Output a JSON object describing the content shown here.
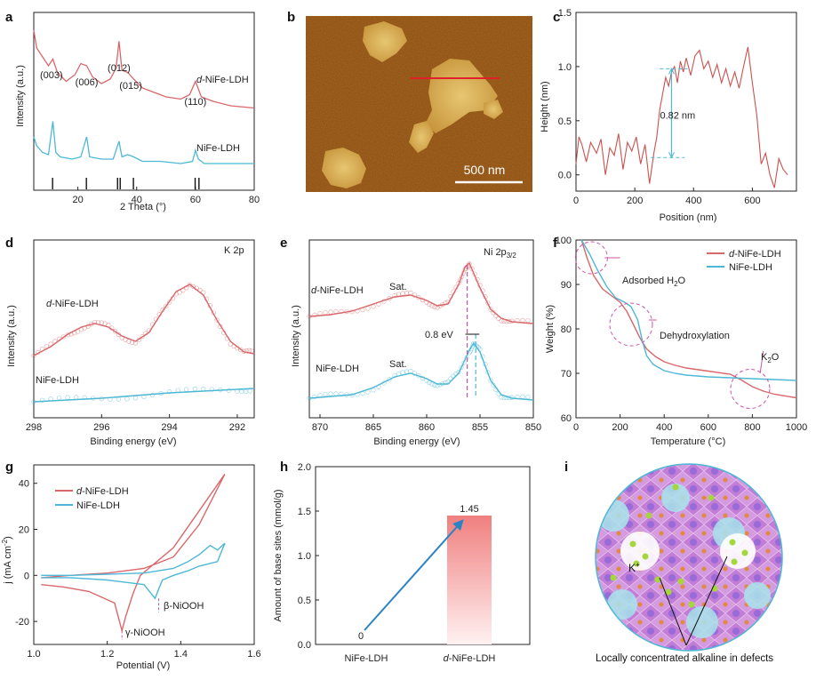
{
  "colors": {
    "red": "#d9676a",
    "blue": "#4db8d6",
    "pink": "#cc55aa",
    "axis": "#222222"
  },
  "chart_data": [
    {
      "panel": "a",
      "type": "line",
      "xlabel": "2 Theta (°)",
      "ylabel": "Intensity (a.u.)",
      "xlim": [
        5,
        80
      ],
      "xticks": [
        20,
        40,
        60,
        80
      ],
      "peak_labels": [
        {
          "text": "(003)",
          "x": 11
        },
        {
          "text": "(006)",
          "x": 23
        },
        {
          "text": "(012)",
          "x": 34
        },
        {
          "text": "(015)",
          "x": 38
        },
        {
          "text": "(110)",
          "x": 60
        }
      ],
      "reference_lines": [
        11.4,
        22.9,
        33.5,
        34.4,
        38.9,
        59.9,
        61.2
      ],
      "series": [
        {
          "name": "d-NiFe-LDH",
          "color": "#d9676a",
          "x": [
            5,
            6,
            8,
            10,
            11.5,
            13,
            16,
            19,
            21,
            23,
            25,
            28,
            31,
            33,
            34,
            35,
            37,
            39,
            42,
            46,
            50,
            55,
            58,
            60,
            62,
            66,
            72,
            80
          ],
          "y": [
            9.2,
            8.4,
            8.0,
            7.6,
            7.9,
            7.3,
            6.9,
            7.2,
            7.7,
            7.6,
            7.1,
            6.8,
            7.0,
            7.5,
            8.7,
            7.4,
            7.3,
            7.0,
            6.6,
            6.4,
            6.2,
            6.1,
            6.3,
            6.9,
            6.2,
            6.0,
            5.8,
            5.7
          ]
        },
        {
          "name": "NiFe-LDH",
          "color": "#4db8d6",
          "x": [
            5,
            6,
            8,
            10,
            11.5,
            12.5,
            14,
            18,
            21,
            23,
            24,
            28,
            32,
            34,
            35,
            37,
            39,
            42,
            48,
            55,
            59,
            60,
            61,
            63,
            70,
            80
          ],
          "y": [
            4.4,
            4.0,
            3.7,
            3.6,
            5.1,
            3.7,
            3.5,
            3.4,
            3.5,
            4.4,
            3.5,
            3.4,
            3.4,
            4.2,
            3.5,
            3.6,
            3.5,
            3.3,
            3.3,
            3.2,
            3.3,
            3.8,
            3.4,
            3.2,
            3.2,
            3.2
          ]
        }
      ]
    },
    {
      "panel": "b",
      "type": "image",
      "scale_bar": "500 nm"
    },
    {
      "panel": "c",
      "type": "line",
      "xlabel": "Position (nm)",
      "ylabel": "Height (nm)",
      "xlim": [
        0,
        750
      ],
      "ylim": [
        -0.15,
        1.5
      ],
      "xticks": [
        0,
        200,
        400,
        600
      ],
      "yticks": [
        0.0,
        0.5,
        1.0,
        1.5
      ],
      "annotation": "0.82 nm",
      "series": [
        {
          "name": "",
          "color": "#c9524f",
          "x": [
            0,
            10,
            20,
            35,
            50,
            70,
            85,
            100,
            115,
            130,
            145,
            160,
            175,
            190,
            205,
            220,
            235,
            250,
            265,
            275,
            285,
            295,
            305,
            315,
            325,
            335,
            345,
            355,
            365,
            375,
            390,
            405,
            420,
            435,
            450,
            465,
            480,
            495,
            510,
            525,
            540,
            555,
            570,
            585,
            600,
            615,
            630,
            645,
            660,
            675,
            690,
            705,
            720
          ],
          "y": [
            0.1,
            0.35,
            0.28,
            0.12,
            0.3,
            0.2,
            0.33,
            0.0,
            0.25,
            0.18,
            0.38,
            0.05,
            0.3,
            0.22,
            0.35,
            0.1,
            0.28,
            -0.08,
            0.2,
            0.35,
            0.6,
            0.75,
            0.9,
            0.82,
            0.95,
            1.0,
            0.85,
            1.05,
            0.95,
            1.08,
            0.92,
            1.1,
            1.15,
            0.98,
            1.05,
            0.9,
            1.02,
            0.85,
            0.98,
            0.82,
            0.95,
            0.8,
            1.0,
            1.18,
            0.85,
            0.55,
            0.1,
            0.2,
            0.0,
            -0.12,
            0.15,
            0.05,
            0.0
          ]
        }
      ]
    },
    {
      "panel": "d",
      "type": "scatter",
      "title": "K 2p",
      "xlabel": "Binding energy (eV)",
      "ylabel": "Intensity (a.u.)",
      "xlim": [
        298,
        291.5
      ],
      "xticks": [
        298,
        296,
        294,
        292
      ],
      "series": [
        {
          "name": "d-NiFe-LDH",
          "color": "#d9676a",
          "x": [
            298,
            297.5,
            297,
            296.6,
            296.2,
            295.8,
            295.4,
            295,
            294.6,
            294.2,
            293.8,
            293.4,
            293,
            292.6,
            292.2,
            291.8,
            291.5
          ],
          "y": [
            3.0,
            3.5,
            4.2,
            4.6,
            4.8,
            4.6,
            4.1,
            3.8,
            4.3,
            5.5,
            6.6,
            7.0,
            6.4,
            5.0,
            3.8,
            3.2,
            3.1
          ]
        },
        {
          "name": "NiFe-LDH",
          "color": "#4db8d6",
          "x": [
            298,
            297,
            296,
            295,
            294,
            293,
            292,
            291.5
          ],
          "y": [
            0.4,
            0.5,
            0.6,
            0.75,
            0.9,
            1.0,
            1.1,
            1.15
          ]
        }
      ]
    },
    {
      "panel": "e",
      "type": "scatter",
      "title": "Ni 2p3/2",
      "xlabel": "Binding energy (eV)",
      "ylabel": "Intensity (a.u.)",
      "xlim": [
        871,
        850
      ],
      "xticks": [
        870,
        865,
        860,
        855,
        850
      ],
      "peak_labels": [
        {
          "text": "Sat.",
          "x": 862
        },
        {
          "text": "Sat.",
          "x": 862
        }
      ],
      "annotation": "0.8 eV",
      "series": [
        {
          "name": "d-NiFe-LDH",
          "color": "#d9676a",
          "x": [
            871,
            869,
            867,
            865,
            863,
            861.5,
            860,
            859,
            858,
            857,
            856.4,
            856,
            855,
            854,
            853,
            852,
            850
          ],
          "y": [
            5.2,
            5.3,
            5.5,
            5.9,
            6.3,
            6.4,
            6.1,
            5.8,
            5.9,
            7.0,
            8.0,
            8.2,
            6.8,
            5.6,
            5.1,
            4.9,
            4.8
          ]
        },
        {
          "name": "NiFe-LDH",
          "color": "#4db8d6",
          "x": [
            871,
            869,
            867,
            865,
            863,
            861.5,
            860,
            859,
            858,
            857,
            856,
            855.6,
            855,
            854,
            853,
            852,
            850
          ],
          "y": [
            0.6,
            0.7,
            0.8,
            1.2,
            1.8,
            2.0,
            1.7,
            1.4,
            1.4,
            2.0,
            3.3,
            3.7,
            3.2,
            1.6,
            0.8,
            0.6,
            0.5
          ]
        }
      ]
    },
    {
      "panel": "f",
      "type": "line",
      "xlabel": "Temperature (°C)",
      "ylabel": "Weight (%)",
      "xlim": [
        0,
        1000
      ],
      "ylim": [
        60,
        100
      ],
      "xticks": [
        0,
        200,
        400,
        600,
        800,
        1000
      ],
      "yticks": [
        60,
        70,
        80,
        90,
        100
      ],
      "annotations": [
        "Adsorbed H2O",
        "Dehydroxylation",
        "K2O"
      ],
      "series": [
        {
          "name": "d-NiFe-LDH",
          "color": "#d9676a",
          "x": [
            25,
            50,
            80,
            120,
            160,
            200,
            230,
            260,
            290,
            320,
            360,
            400,
            450,
            500,
            600,
            700,
            750,
            800,
            850,
            900,
            1000
          ],
          "y": [
            100,
            96,
            92,
            89,
            87.5,
            86,
            84,
            81,
            78,
            75.5,
            73.8,
            72.6,
            71.8,
            71.2,
            70.5,
            69.8,
            68.5,
            67,
            66,
            65.3,
            64.5
          ]
        },
        {
          "name": "NiFe-LDH",
          "color": "#4db8d6",
          "x": [
            25,
            60,
            100,
            140,
            180,
            220,
            250,
            280,
            300,
            320,
            350,
            400,
            450,
            500,
            600,
            700,
            800,
            900,
            1000
          ],
          "y": [
            100,
            97,
            93,
            89.5,
            87,
            86,
            85,
            82,
            77.5,
            74,
            72,
            70.6,
            70,
            69.6,
            69.2,
            69,
            68.8,
            68.6,
            68.4
          ]
        }
      ]
    },
    {
      "panel": "g",
      "type": "line",
      "xlabel": "Potential (V)",
      "ylabel": "j (mA cm-2)",
      "xlim": [
        1.0,
        1.6
      ],
      "ylim": [
        -30,
        48
      ],
      "xticks": [
        1.0,
        1.2,
        1.4,
        1.6
      ],
      "yticks": [
        -20,
        0,
        20,
        40
      ],
      "annotations": [
        "β-NiOOH",
        "γ-NiOOH"
      ],
      "series": [
        {
          "name": "d-NiFe-LDH",
          "color": "#d9676a",
          "x": [
            1.02,
            1.1,
            1.2,
            1.3,
            1.38,
            1.45,
            1.52,
            1.45,
            1.38,
            1.32,
            1.29,
            1.27,
            1.25,
            1.24,
            1.22,
            1.15,
            1.08,
            1.02
          ],
          "y": [
            -1,
            0,
            1,
            3,
            8,
            22,
            44,
            28,
            12,
            4,
            0,
            -8,
            -18,
            -24,
            -12,
            -7,
            -5,
            -4
          ]
        },
        {
          "name": "NiFe-LDH",
          "color": "#4db8d6",
          "x": [
            1.02,
            1.1,
            1.2,
            1.3,
            1.38,
            1.42,
            1.45,
            1.48,
            1.5,
            1.52,
            1.5,
            1.45,
            1.42,
            1.38,
            1.35,
            1.34,
            1.33,
            1.3,
            1.2,
            1.1,
            1.02
          ],
          "y": [
            0,
            0,
            0.5,
            1,
            3,
            6,
            9,
            13,
            11,
            14,
            6,
            4,
            2,
            0,
            -2,
            -6,
            -10,
            -4,
            -2,
            -1,
            -1
          ]
        }
      ]
    },
    {
      "panel": "h",
      "type": "bar",
      "categories": [
        "NiFe-LDH",
        "d-NiFe-LDH"
      ],
      "values": [
        0,
        1.45
      ],
      "ylabel": "Amount of base sites (mmol/g)",
      "ylim": [
        0,
        2.0
      ],
      "yticks": [
        0.0,
        0.5,
        1.0,
        1.5,
        2.0
      ],
      "data_labels": [
        "0",
        "1.45"
      ]
    },
    {
      "panel": "i",
      "type": "image",
      "labels": [
        "K+"
      ],
      "caption": "Locally concentrated alkaline in defects"
    }
  ],
  "labels": {
    "a": {
      "d": "d",
      "rest": "-NiFe-LDH",
      "nife": "NiFe-LDH"
    },
    "d": {
      "d": "d",
      "rest": "-NiFe-LDH",
      "nife": "NiFe-LDH"
    },
    "e": {
      "d": "d",
      "rest": "-NiFe-LDH",
      "nife": "NiFe-LDH",
      "title_main": "Ni 2p",
      "title_sub": "3/2"
    },
    "f": {
      "d": "d",
      "rest": "-NiFe-LDH",
      "nife": "NiFe-LDH",
      "h2o_pre": "Adsorbed H",
      "h2o_sub": "2",
      "h2o_post": "O",
      "dehyd": "Dehydroxylation",
      "k2o_pre": "K",
      "k2o_sub": "2",
      "k2o_post": "O"
    },
    "g": {
      "d": "d",
      "rest": "-NiFe-LDH",
      "nife": "NiFe-LDH",
      "ylabel_pre": "j (mA cm",
      "ylabel_sup": "-2",
      "ylabel_post": ")"
    },
    "h": {
      "cat1": "NiFe-LDH",
      "cat2_d": "d",
      "cat2_rest": "-NiFe-LDH"
    },
    "i": {
      "kplus_main": "K",
      "kplus_sup": "+"
    }
  }
}
